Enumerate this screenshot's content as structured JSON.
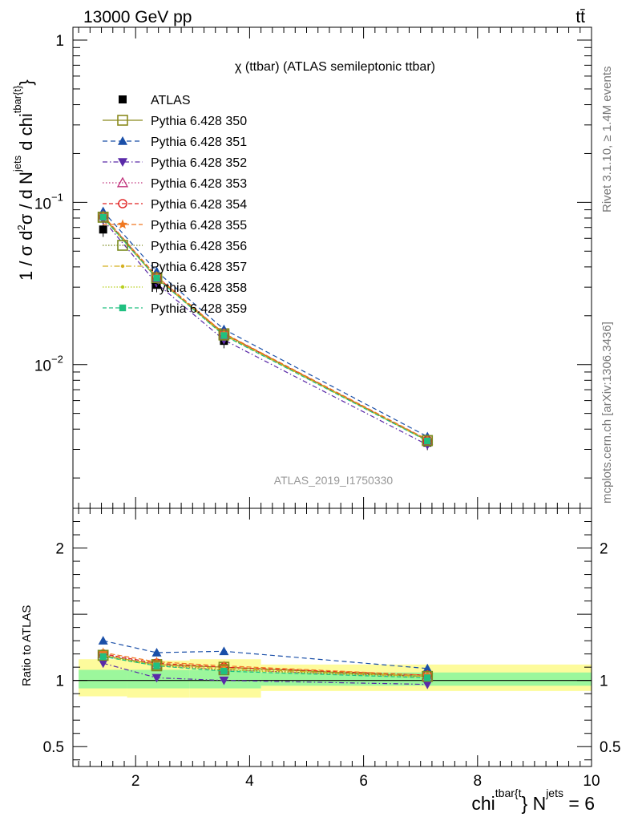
{
  "header": {
    "left": "13000 GeV pp",
    "right": "tt̄"
  },
  "side": {
    "rivet": "Rivet 3.1.10, ≥ 1.4M events",
    "mcplots": "mcplots.cern.ch [arXiv:1306.3436]"
  },
  "chart_data": {
    "type": "line",
    "title": "χ (ttbar) (ATLAS semileptonic ttbar)",
    "watermark": "ATLAS_2019_I1750330",
    "xlabel": "chi^{tbar{t}} N^{jets} = 6",
    "xlabel_parts": {
      "base": "chi",
      "sup1": "tbar{t",
      "mid": "} N",
      "sup2": "jets",
      "tail": " = 6"
    },
    "ylabel_top": "1 / σ d²σ / d N^{jets} d chi^{tbar{t}}",
    "ylabel_bottom": "Ratio to ATLAS",
    "xlim": [
      0.9,
      10.0
    ],
    "x_ticks": [
      "2",
      "4",
      "6",
      "8",
      "10"
    ],
    "top": {
      "scale": "log",
      "ylim": [
        0.0013,
        1.2
      ],
      "y_ticks": [
        {
          "value": 1,
          "label": "1"
        },
        {
          "value": 0.1,
          "label": "10",
          "exp": "−1"
        },
        {
          "value": 0.01,
          "label": "10",
          "exp": "−2"
        }
      ]
    },
    "bottom": {
      "ylim": [
        0.35,
        2.3
      ],
      "y_ticks": [
        {
          "value": 0.5,
          "label": "0.5"
        },
        {
          "value": 1,
          "label": "1"
        },
        {
          "value": 2,
          "label": "2"
        }
      ],
      "bands": [
        {
          "x0": 1.0,
          "x1": 1.85,
          "yellow": [
            0.88,
            1.16
          ],
          "green": [
            0.94,
            1.08
          ]
        },
        {
          "x0": 1.85,
          "x1": 2.95,
          "yellow": [
            0.87,
            1.15
          ],
          "green": [
            0.94,
            1.08
          ]
        },
        {
          "x0": 2.95,
          "x1": 4.2,
          "yellow": [
            0.87,
            1.16
          ],
          "green": [
            0.94,
            1.08
          ]
        },
        {
          "x0": 4.2,
          "x1": 10.0,
          "yellow": [
            0.92,
            1.12
          ],
          "green": [
            0.96,
            1.06
          ]
        }
      ]
    },
    "x": [
      1.43,
      2.37,
      3.55,
      7.12
    ],
    "atlas": {
      "name": "ATLAS",
      "values": [
        0.068,
        0.031,
        0.014,
        0.0033
      ],
      "xerr": [
        0.43,
        0.55,
        0.55,
        2.9
      ],
      "yerr_frac": 0.1
    },
    "series": [
      {
        "name": "Pythia 6.428 350",
        "color": "#8a8a1e",
        "marker": "square-open",
        "dash": "solid",
        "values": [
          0.081,
          0.034,
          0.0155,
          0.0034
        ],
        "ratio": [
          1.19,
          1.12,
          1.1,
          1.03
        ]
      },
      {
        "name": "Pythia 6.428 351",
        "color": "#1a4fa8",
        "marker": "triangle-up",
        "dash": "6,4",
        "values": [
          0.088,
          0.0375,
          0.0165,
          0.0036
        ],
        "ratio": [
          1.3,
          1.21,
          1.22,
          1.09
        ]
      },
      {
        "name": "Pythia 6.428 352",
        "color": "#5a2aa8",
        "marker": "triangle-down",
        "dash": "6,3,1.5,3",
        "values": [
          0.078,
          0.0316,
          0.0142,
          0.0032
        ],
        "ratio": [
          1.13,
          1.02,
          1.0,
          0.97
        ]
      },
      {
        "name": "Pythia 6.428 353",
        "color": "#c0307a",
        "marker": "triangle-open",
        "dash": "1.5,2.5",
        "values": [
          0.082,
          0.0345,
          0.0152,
          0.0034
        ],
        "ratio": [
          1.2,
          1.12,
          1.08,
          1.03
        ]
      },
      {
        "name": "Pythia 6.428 354",
        "color": "#e02020",
        "marker": "circle-open",
        "dash": "5,3",
        "values": [
          0.082,
          0.0348,
          0.0155,
          0.00342
        ],
        "ratio": [
          1.2,
          1.13,
          1.1,
          1.04
        ]
      },
      {
        "name": "Pythia 6.428 355",
        "color": "#f07820",
        "marker": "star",
        "dash": "6,3",
        "values": [
          0.083,
          0.035,
          0.0156,
          0.00345
        ],
        "ratio": [
          1.21,
          1.14,
          1.11,
          1.04
        ]
      },
      {
        "name": "Pythia 6.428 356",
        "color": "#7a8a1e",
        "marker": "square-open",
        "dash": "1.5,2",
        "values": [
          0.081,
          0.0342,
          0.0152,
          0.0034
        ],
        "ratio": [
          1.19,
          1.11,
          1.08,
          1.03
        ]
      },
      {
        "name": "Pythia 6.428 357",
        "color": "#d4b020",
        "marker": "dot",
        "dash": "7,3,1.5,3",
        "values": [
          0.081,
          0.0343,
          0.0153,
          0.0034
        ],
        "ratio": [
          1.19,
          1.12,
          1.09,
          1.03
        ]
      },
      {
        "name": "Pythia 6.428 358",
        "color": "#b8d020",
        "marker": "dot",
        "dash": "1.5,2",
        "values": [
          0.08,
          0.034,
          0.0152,
          0.00338
        ],
        "ratio": [
          1.18,
          1.11,
          1.08,
          1.02
        ]
      },
      {
        "name": "Pythia 6.428 359",
        "color": "#20c080",
        "marker": "square",
        "dash": "5,3",
        "values": [
          0.081,
          0.0341,
          0.0151,
          0.00338
        ],
        "ratio": [
          1.18,
          1.11,
          1.07,
          1.02
        ]
      }
    ]
  }
}
